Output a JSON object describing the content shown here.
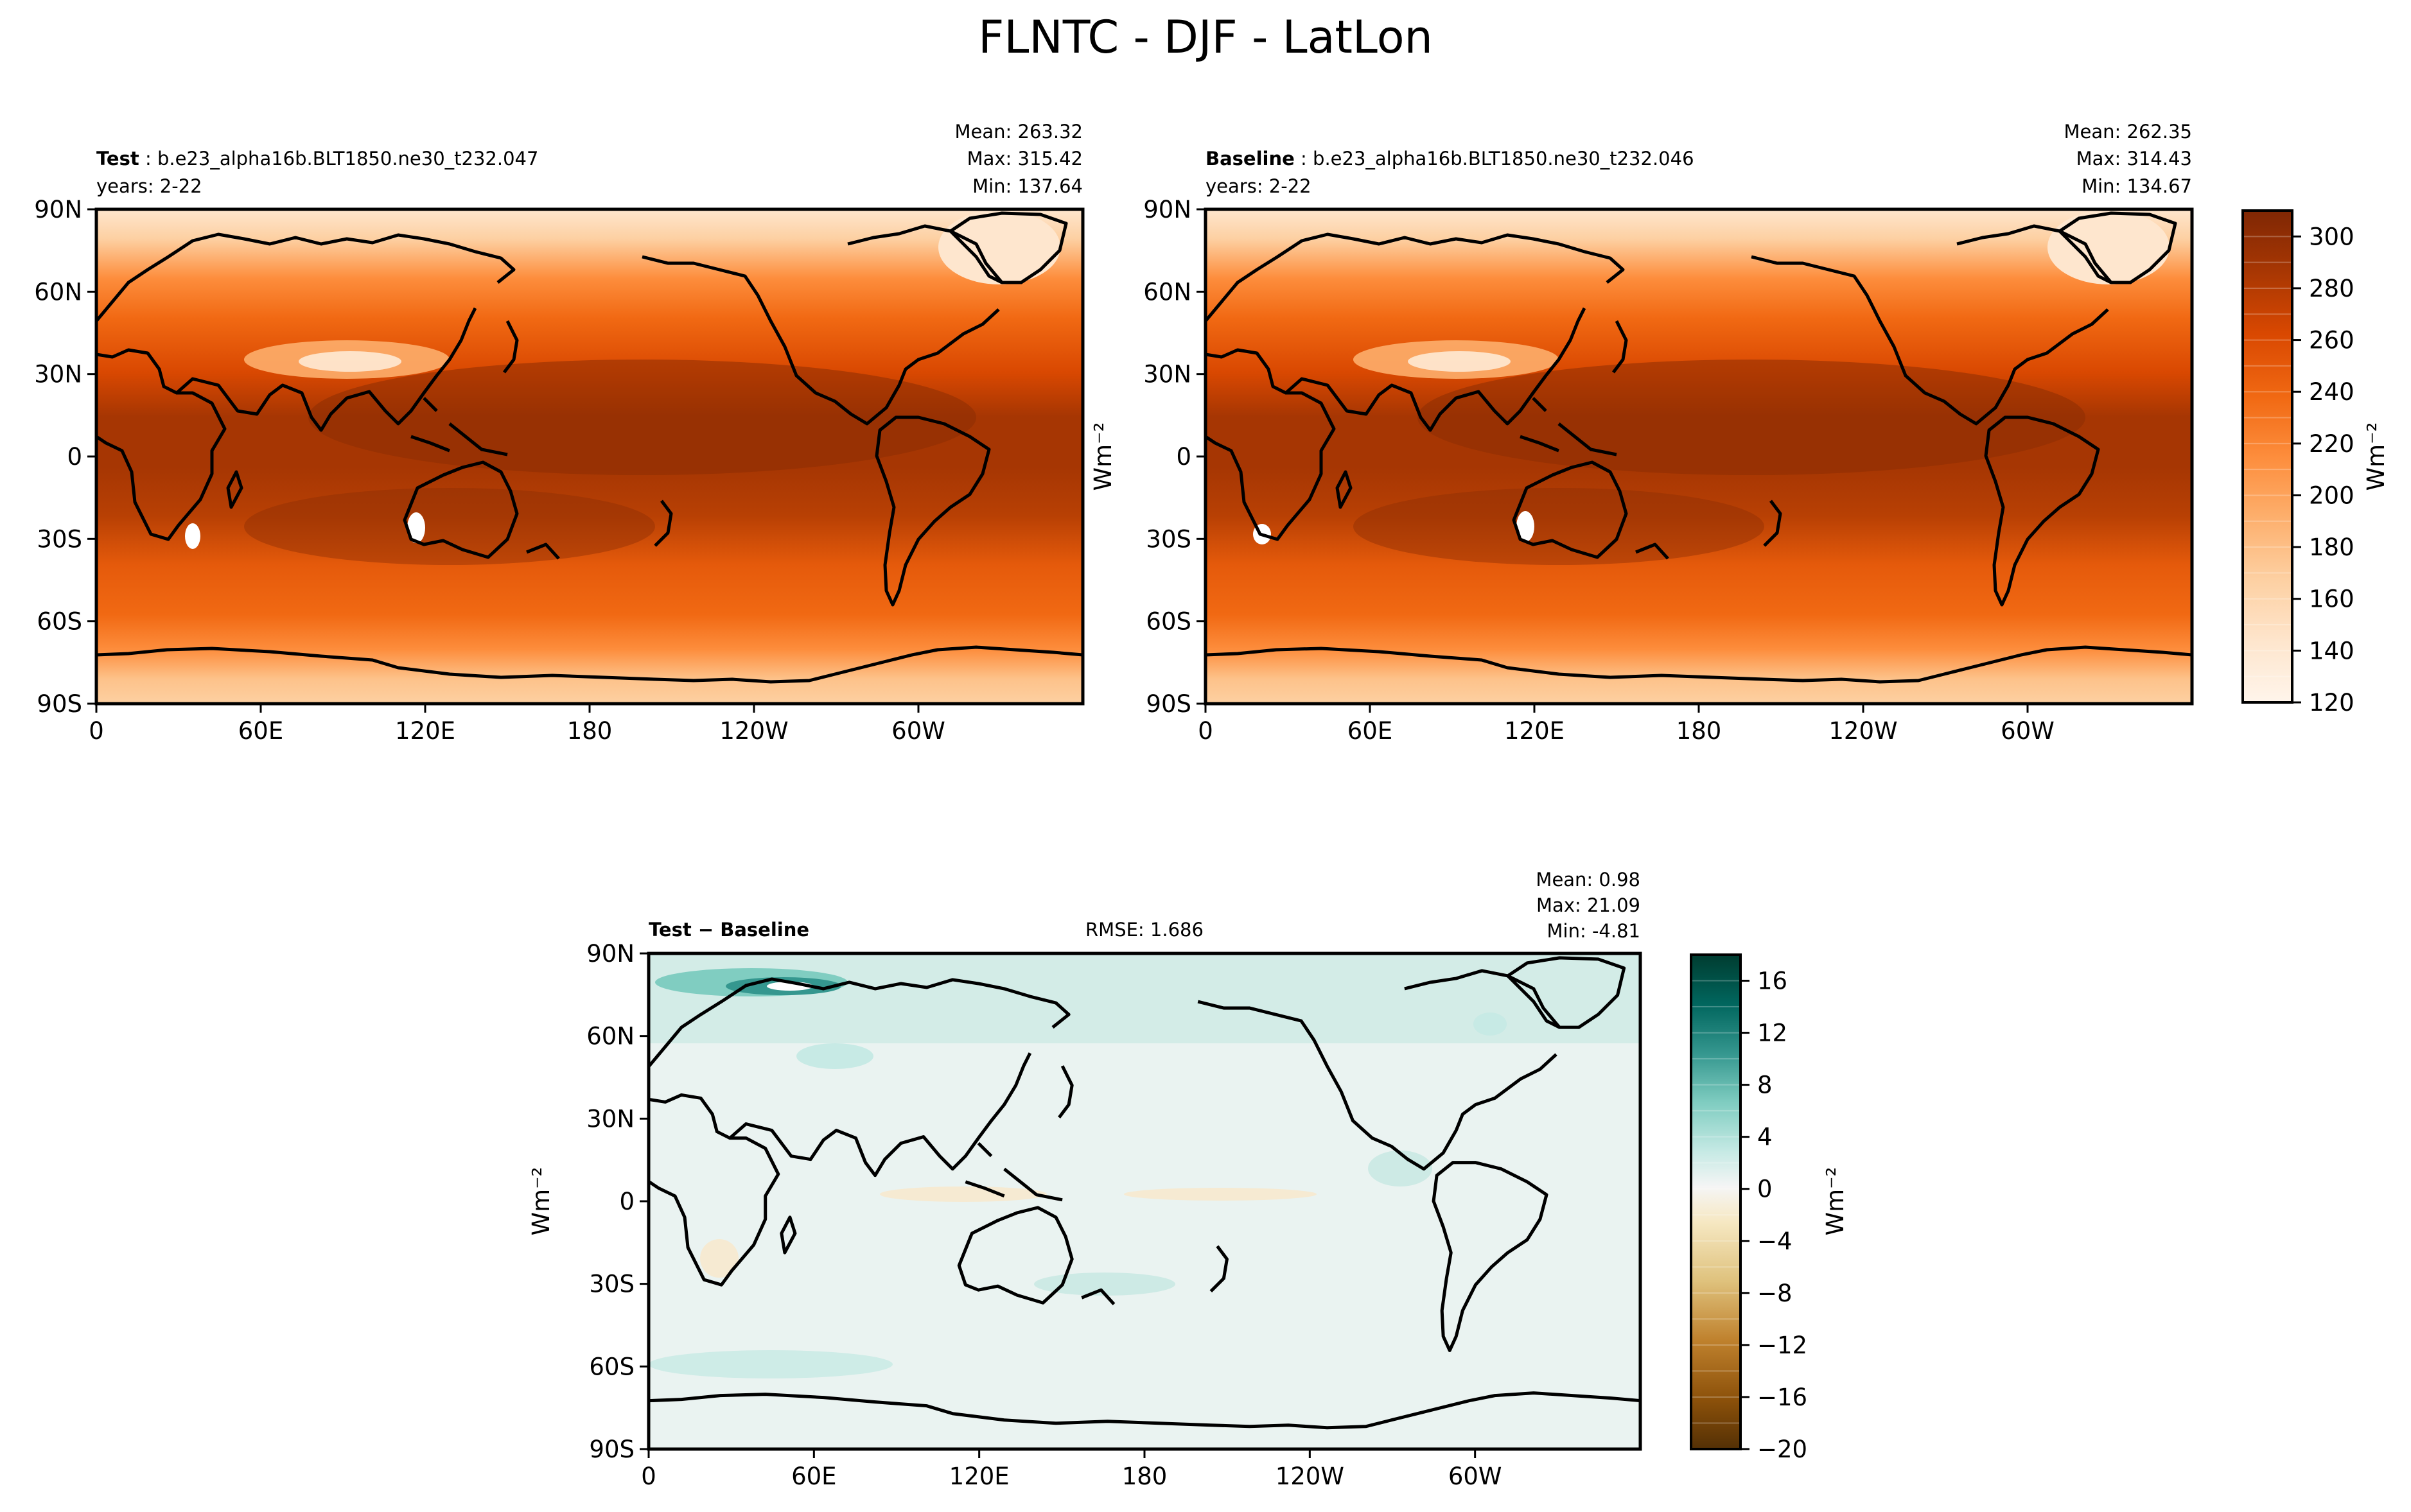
{
  "chart_data": [
    {
      "type": "heatmap",
      "title": "FLNTC - DJF - LatLon",
      "panel": "Test",
      "case": "b.e23_alpha16b.BLT1850.ne30_t232.047",
      "years": "years: 2-22",
      "mean": "Mean: 263.32",
      "max": "Max: 315.42",
      "min": "Min: 137.64",
      "ylabel": "",
      "xticks": [
        "0",
        "60E",
        "120E",
        "180",
        "120W",
        "60W"
      ],
      "yticks": [
        "90N",
        "60N",
        "30N",
        "0",
        "30S",
        "60S",
        "90S"
      ]
    },
    {
      "type": "heatmap",
      "panel": "Baseline",
      "case": "b.e23_alpha16b.BLT1850.ne30_t232.046",
      "years": "years: 2-22",
      "mean": "Mean: 262.35",
      "max": "Max: 314.43",
      "min": "Min: 134.67",
      "ylabel": "Wm⁻²",
      "xticks": [
        "0",
        "60E",
        "120E",
        "180",
        "120W",
        "60W"
      ],
      "yticks": [
        "90N",
        "60N",
        "30N",
        "0",
        "30S",
        "60S",
        "90S"
      ],
      "colorbar": {
        "label": "Wm⁻²",
        "range": [
          120,
          310
        ],
        "ticks": [
          "120",
          "140",
          "160",
          "180",
          "200",
          "220",
          "240",
          "260",
          "280",
          "300"
        ],
        "colormap": "Oranges"
      }
    },
    {
      "type": "heatmap",
      "panel": "Test − Baseline",
      "rmse": "RMSE: 1.686",
      "mean": "Mean:  0.98",
      "max": "Max: 21.09",
      "min": "Min: -4.81",
      "ylabel": "Wm⁻²",
      "xticks": [
        "0",
        "60E",
        "120E",
        "180",
        "120W",
        "60W"
      ],
      "yticks": [
        "90N",
        "60N",
        "30N",
        "0",
        "30S",
        "60S",
        "90S"
      ],
      "colorbar": {
        "label": "Wm⁻²",
        "range": [
          -20,
          18
        ],
        "ticks": [
          "−20",
          "−16",
          "−12",
          "−8",
          "−4",
          "0",
          "4",
          "8",
          "12",
          "16"
        ],
        "colormap": "BrBG"
      }
    }
  ],
  "colors": {
    "oranges": [
      "#fff5eb",
      "#fee6ce",
      "#fdd0a2",
      "#fdae6b",
      "#fd8d3c",
      "#f16913",
      "#d94801",
      "#a63603",
      "#7f2704"
    ],
    "diverging": [
      "#543005",
      "#8c510a",
      "#bf812d",
      "#dfc27d",
      "#f6e8c3",
      "#f5f5f5",
      "#c7eae5",
      "#80cdc1",
      "#35978f",
      "#01665e",
      "#003c30"
    ]
  }
}
